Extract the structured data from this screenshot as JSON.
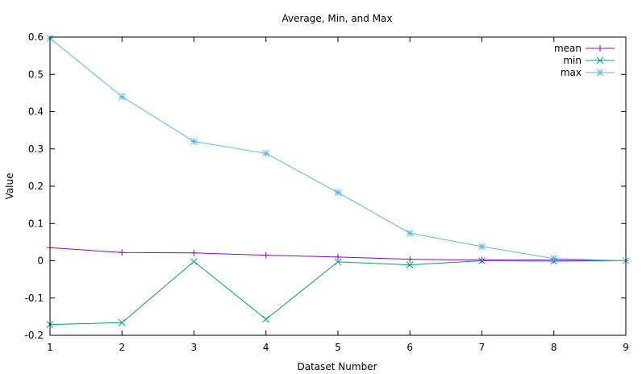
{
  "chart_data": {
    "type": "line",
    "title": "Average, Min, and Max",
    "xlabel": "Dataset Number",
    "ylabel": "Value",
    "xlim": [
      1,
      9
    ],
    "ylim": [
      -0.2,
      0.6
    ],
    "x": [
      1,
      2,
      3,
      4,
      5,
      6,
      7,
      8,
      9
    ],
    "x_ticks": [
      "1",
      "2",
      "3",
      "4",
      "5",
      "6",
      "7",
      "8",
      "9"
    ],
    "y_ticks": [
      "-0.2",
      "-0.1",
      "0",
      "0.1",
      "0.2",
      "0.3",
      "0.4",
      "0.5",
      "0.6"
    ],
    "y_tick_values": [
      -0.2,
      -0.1,
      0,
      0.1,
      0.2,
      0.3,
      0.4,
      0.5,
      0.6
    ],
    "grid": false,
    "legend_position": "top-right",
    "series": [
      {
        "name": "mean",
        "color": "#9400d3",
        "marker": "plus",
        "values": [
          0.035,
          0.022,
          0.021,
          0.015,
          0.01,
          0.004,
          0.002,
          0.002,
          0.0
        ]
      },
      {
        "name": "min",
        "color": "#009e73",
        "marker": "cross",
        "values": [
          -0.171,
          -0.166,
          -0.002,
          -0.157,
          -0.003,
          -0.011,
          0.0,
          -0.001,
          0.0
        ]
      },
      {
        "name": "max",
        "color": "#56b4e9",
        "marker": "star",
        "values": [
          0.597,
          0.44,
          0.32,
          0.288,
          0.183,
          0.074,
          0.038,
          0.006,
          0.0
        ]
      }
    ]
  }
}
